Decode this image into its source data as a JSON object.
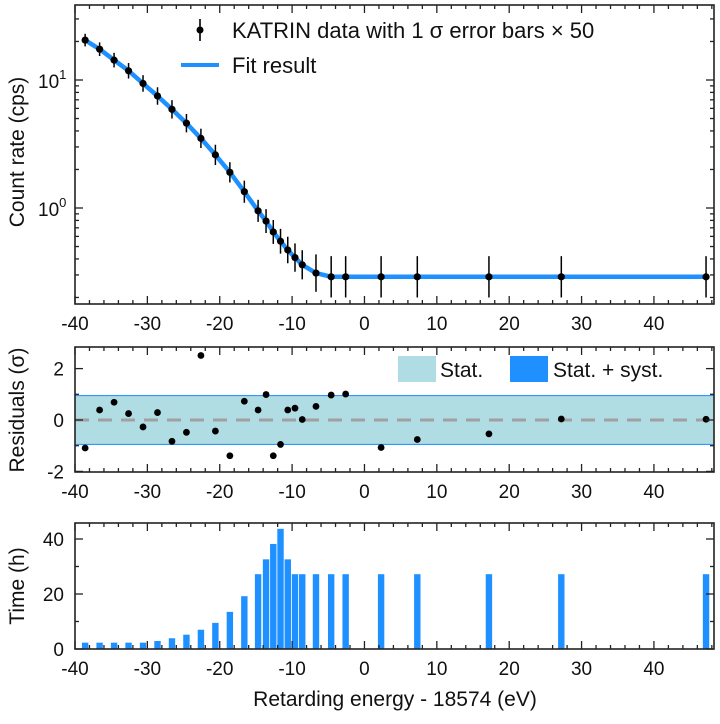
{
  "chart_data": [
    {
      "type": "scatter",
      "panel": "spectrum",
      "ylabel": "Count rate (cps)",
      "yscale": "log",
      "ylim": [
        0.178,
        38.5
      ],
      "xlim": [
        -40,
        48.3
      ],
      "ytick_labels": [
        {
          "base": "10",
          "exp": "1",
          "value": 10
        },
        {
          "base": "10",
          "exp": "0",
          "value": 1
        }
      ],
      "xtick_labels": [
        "-40",
        "-30",
        "-20",
        "-10",
        "0",
        "10",
        "20",
        "30",
        "40"
      ],
      "legend": {
        "placement": "top-right",
        "data_label": "KATRIN data with 1 σ error bars × 50",
        "fit_label": "Fit result"
      },
      "x": [
        -38.6,
        -36.6,
        -34.6,
        -32.6,
        -30.6,
        -28.6,
        -26.6,
        -24.6,
        -22.6,
        -20.6,
        -18.6,
        -16.6,
        -14.7,
        -13.6,
        -12.6,
        -11.6,
        -10.6,
        -9.6,
        -8.6,
        -6.7,
        -4.6,
        -2.6,
        2.3,
        7.3,
        17.2,
        27.2,
        47.2
      ],
      "y": [
        20.5,
        17.4,
        14.3,
        11.8,
        9.4,
        7.5,
        5.9,
        4.6,
        3.5,
        2.6,
        1.9,
        1.34,
        0.95,
        0.79,
        0.65,
        0.55,
        0.47,
        0.41,
        0.36,
        0.31,
        0.29,
        0.29,
        0.29,
        0.29,
        0.29,
        0.29,
        0.29
      ],
      "y_err_factor": [
        1.12,
        1.13,
        1.14,
        1.15,
        1.16,
        1.17,
        1.18,
        1.18,
        1.19,
        1.2,
        1.2,
        1.22,
        1.22,
        1.24,
        1.24,
        1.25,
        1.27,
        1.29,
        1.3,
        1.4,
        1.45,
        1.45,
        1.45,
        1.45,
        1.45,
        1.45,
        1.45
      ],
      "colors": {
        "data": "#000000",
        "fit": "#1e90ff"
      }
    },
    {
      "type": "scatter",
      "panel": "residuals",
      "ylabel": "Residuals (σ)",
      "ylim": [
        -2.2,
        3.0
      ],
      "xlim": [
        -40,
        48.3
      ],
      "ytick_labels": [
        "2",
        "0",
        "-2"
      ],
      "ytick_values": [
        2,
        0,
        -2
      ],
      "xtick_labels": [
        "-40",
        "-30",
        "-20",
        "-10",
        "0",
        "10",
        "20",
        "30",
        "40"
      ],
      "legend": {
        "placement": "top-right",
        "stat_label": "Stat.",
        "syst_label": "Stat. + syst."
      },
      "x": [
        -38.6,
        -36.6,
        -34.6,
        -32.6,
        -30.6,
        -28.6,
        -26.6,
        -24.6,
        -22.6,
        -20.6,
        -18.6,
        -16.6,
        -14.7,
        -13.6,
        -12.6,
        -11.6,
        -10.6,
        -9.6,
        -8.6,
        -6.7,
        -4.6,
        -2.6,
        2.3,
        7.3,
        17.2,
        27.2,
        47.2
      ],
      "y": [
        -1.09,
        0.39,
        0.69,
        0.25,
        -0.27,
        0.29,
        -0.83,
        -0.48,
        2.51,
        -0.43,
        -1.39,
        0.73,
        0.39,
        0.99,
        -1.39,
        -0.95,
        0.39,
        0.46,
        0.02,
        0.53,
        0.97,
        1.01,
        -1.07,
        -0.76,
        -0.54,
        0.04,
        0.03
      ],
      "stat_band": 0.93,
      "syst_band": 0.97,
      "colors": {
        "stat": "#b0dde4",
        "syst": "#1e90ff",
        "zero_line": "#a0a0a0"
      }
    },
    {
      "type": "bar",
      "panel": "time",
      "ylabel": "Time (h)",
      "xlabel": "Retarding energy - 18574 (eV)",
      "ylim": [
        0,
        45.6
      ],
      "xlim": [
        -40,
        48.3
      ],
      "ytick_labels": [
        "40",
        "20",
        "0"
      ],
      "ytick_values": [
        40,
        20,
        0
      ],
      "xtick_labels": [
        "-40",
        "-30",
        "-20",
        "-10",
        "0",
        "10",
        "20",
        "30",
        "40"
      ],
      "x": [
        -38.6,
        -36.6,
        -34.6,
        -32.6,
        -30.6,
        -28.6,
        -26.6,
        -24.6,
        -22.6,
        -20.6,
        -18.6,
        -16.6,
        -14.7,
        -13.6,
        -12.6,
        -11.6,
        -10.6,
        -9.6,
        -8.6,
        -6.7,
        -4.6,
        -2.6,
        2.3,
        7.3,
        17.2,
        27.2,
        47.2
      ],
      "values": [
        2.3,
        2.3,
        2.3,
        2.3,
        2.3,
        2.9,
        3.9,
        5.2,
        7.0,
        9.5,
        13.5,
        19.2,
        27.2,
        32.6,
        38.2,
        43.7,
        32.6,
        27.2,
        27.2,
        27.2,
        27.2,
        27.2,
        27.2,
        27.2,
        27.2,
        27.2,
        27.2
      ],
      "colors": {
        "bar": "#1e90ff"
      }
    }
  ]
}
